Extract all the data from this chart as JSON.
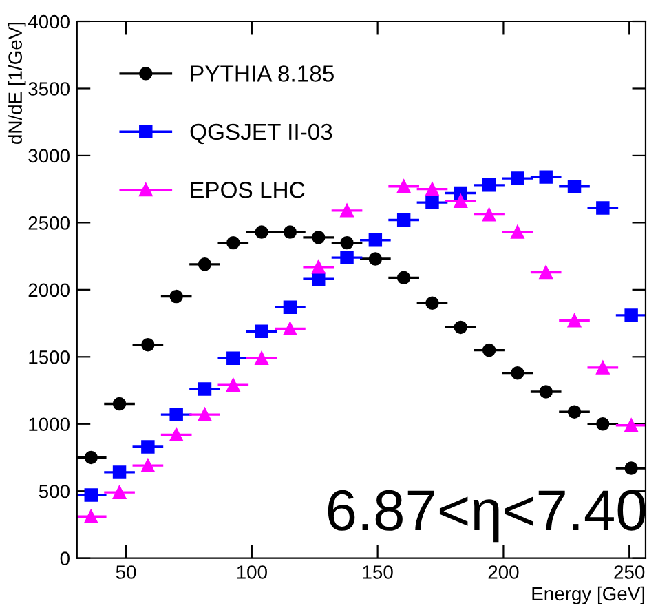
{
  "chart_data": {
    "type": "scatter",
    "xlabel": "Energy [GeV]",
    "ylabel": "dN/dE [1/GeV]",
    "x": [
      36.1,
      47.4,
      58.7,
      70.0,
      81.3,
      92.6,
      103.9,
      115.2,
      126.5,
      137.8,
      149.1,
      160.4,
      171.7,
      183.0,
      194.3,
      205.6,
      216.9,
      228.2,
      239.5,
      250.8
    ],
    "series": [
      {
        "name": "PYTHIA 8.185",
        "color": "#000000",
        "marker": "circle",
        "values": [
          750,
          1150,
          1590,
          1950,
          2190,
          2350,
          2430,
          2430,
          2390,
          2350,
          2230,
          2090,
          1900,
          1720,
          1550,
          1380,
          1240,
          1090,
          1000,
          670
        ],
        "xerrors": [
          5.65,
          5.65,
          5.65,
          5.65,
          5.65,
          5.65,
          5.65,
          5.65,
          5.65,
          5.65,
          5.65,
          5.65,
          5.65,
          5.65,
          5.65,
          5.65,
          5.65,
          5.65,
          5.65,
          5.65
        ]
      },
      {
        "name": "QGSJET II-03",
        "color": "#0000ff",
        "marker": "square",
        "values": [
          470,
          640,
          830,
          1070,
          1260,
          1490,
          1690,
          1870,
          2080,
          2240,
          2370,
          2520,
          2650,
          2720,
          2780,
          2830,
          2840,
          2770,
          2610,
          1810
        ],
        "xerrors": [
          5.65,
          5.65,
          5.65,
          5.65,
          5.65,
          5.65,
          5.65,
          5.65,
          5.65,
          5.65,
          5.65,
          5.65,
          5.65,
          5.65,
          5.65,
          5.65,
          5.65,
          5.65,
          5.65,
          5.65
        ]
      },
      {
        "name": "EPOS LHC",
        "color": "#ff00ff",
        "marker": "triangle",
        "values": [
          310,
          490,
          690,
          920,
          1070,
          1290,
          1490,
          1710,
          2170,
          2590,
          null,
          2770,
          2750,
          2660,
          2560,
          2430,
          2130,
          1770,
          1420,
          990
        ],
        "xerrors": [
          5.65,
          5.65,
          5.65,
          5.65,
          5.65,
          5.65,
          5.65,
          5.65,
          5.65,
          5.65,
          null,
          5.65,
          5.65,
          5.65,
          5.65,
          5.65,
          5.65,
          5.65,
          5.65,
          5.65
        ]
      }
    ],
    "xlim": [
      30.5,
      256.5
    ],
    "xticks": [
      50,
      100,
      150,
      200,
      250
    ],
    "ylim": [
      0,
      4000
    ],
    "yticks": [
      0,
      500,
      1000,
      1500,
      2000,
      2500,
      3000,
      3500,
      4000
    ],
    "annotations": [
      "6.87<η<7.40"
    ],
    "legend": "top left",
    "grid": false
  }
}
